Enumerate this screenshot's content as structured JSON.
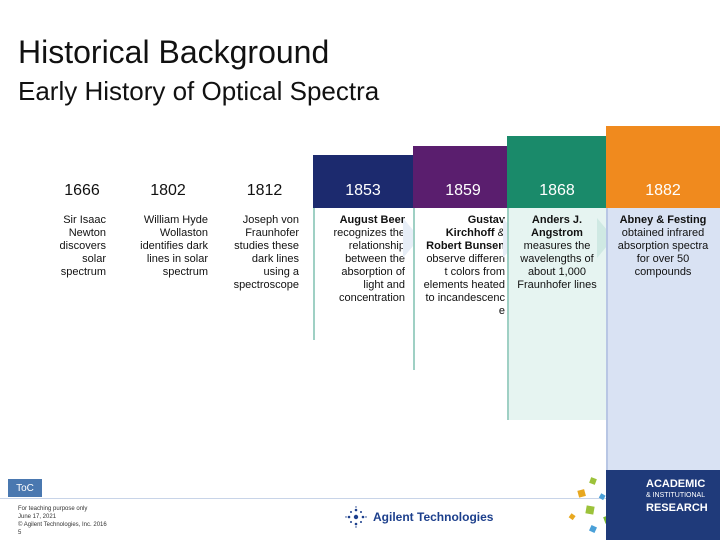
{
  "slide": {
    "title": "Historical Background",
    "subtitle": "Early History of Optical Spectra"
  },
  "timeline": [
    {
      "year": "1666",
      "header_color": "#ffffff",
      "header_text_color": "#111111",
      "body_color": "#ffffff",
      "lines": [
        {
          "t": "Sir Isaac Newton",
          "b": false
        },
        {
          "t": "discovers solar spectrum",
          "b": false
        }
      ]
    },
    {
      "year": "1802",
      "header_color": "#ffffff",
      "header_text_color": "#111111",
      "body_color": "#ffffff",
      "lines": [
        {
          "t": "William Hyde Wollaston",
          "b": false
        },
        {
          "t": "identifies dark lines in solar spectrum",
          "b": false
        }
      ]
    },
    {
      "year": "1812",
      "header_color": "#ffffff",
      "header_text_color": "#111111",
      "body_color": "#ffffff",
      "lines": [
        {
          "t": "Joseph von Fraunhofer",
          "b": false
        },
        {
          "t": "studies these dark lines using a spectroscope",
          "b": false
        }
      ]
    },
    {
      "year": "1853",
      "header_color": "#1c2a6e",
      "header_text_color": "#ffffff",
      "body_color": "#ffffff",
      "lines": [
        {
          "t": "August Beer",
          "b": true
        },
        {
          "t": "recognizes the relationship between the absorption of light and concentration",
          "b": false
        }
      ]
    },
    {
      "year": "1859",
      "header_color": "#5a1e6e",
      "header_text_color": "#ffffff",
      "body_color": "#ffffff",
      "lines": [
        {
          "t": "Gustav Kirchhoff",
          "b": true
        },
        {
          "t": "&",
          "b": false
        },
        {
          "t": "Robert Bunsen",
          "b": true
        },
        {
          "t": "observe differen t colors from elements heated to incandescenc e",
          "b": false
        }
      ]
    },
    {
      "year": "1868",
      "header_color": "#1a8a6a",
      "header_text_color": "#ffffff",
      "body_color": "#e6f4f1",
      "lines": [
        {
          "t": "Anders J. Angstrom",
          "b": true
        },
        {
          "t": "measures the wavelengths of about 1,000 Fraunhofer lines",
          "b": false
        }
      ]
    },
    {
      "year": "1882",
      "header_color": "#f08a1e",
      "header_text_color": "#ffffff",
      "body_color": "#d9e2f3",
      "lines": [
        {
          "t": "Abney & Festing",
          "b": true
        },
        {
          "t": "obtained infrared absorption spectra for over 50 compounds",
          "b": false
        }
      ]
    }
  ],
  "footer": {
    "toc_label": "ToC",
    "fine_print": [
      "For teaching purpose only",
      "June 17, 2021",
      "© Agilent Technologies, Inc. 2016",
      "5"
    ],
    "brand": "Agilent Technologies",
    "academic_1": "ACADEMIC",
    "academic_2": "& INSTITUTIONAL",
    "academic_3": "RESEARCH"
  }
}
